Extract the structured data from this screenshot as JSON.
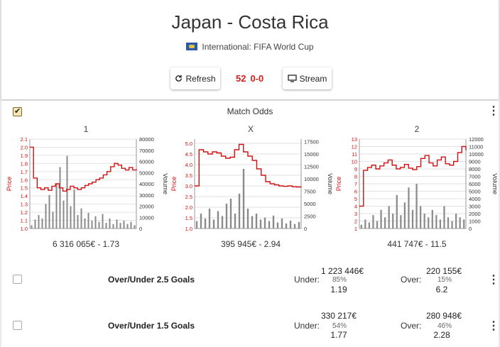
{
  "header": {
    "title": "Japan - Costa Rica",
    "competition": "International: FIFA World Cup",
    "refresh_label": "Refresh",
    "match_minute": "52",
    "match_score": "0-0",
    "stream_label": "Stream"
  },
  "match_odds": {
    "title": "Match Odds",
    "checked": true,
    "y_left_label": "Price",
    "y_right_label": "Volume",
    "colors": {
      "price": "#d01010",
      "volume": "#8a8a8a"
    },
    "charts": [
      {
        "label": "1",
        "footer": "6 316 065€ - 1.73"
      },
      {
        "label": "X",
        "footer": "395 945€ - 2.94"
      },
      {
        "label": "2",
        "footer": "441 747€ - 11.5"
      }
    ]
  },
  "chart_data": [
    {
      "type": "line",
      "title": "1",
      "xlabel": "",
      "ylabel": "Price",
      "y2label": "Volume",
      "ylim": [
        1.0,
        2.1
      ],
      "y2lim": [
        0,
        80000
      ],
      "price_ticks": [
        "1.0",
        "1.1",
        "1.2",
        "1.3",
        "1.4",
        "1.5",
        "1.6",
        "1.7",
        "1.8",
        "1.9",
        "2.0",
        "2.1"
      ],
      "volume_ticks": [
        "0",
        "10000",
        "20000",
        "30000",
        "40000",
        "50000",
        "60000",
        "70000",
        "80000"
      ],
      "series": [
        {
          "name": "Price",
          "values": [
            2.0,
            1.62,
            1.5,
            1.48,
            1.5,
            1.47,
            1.52,
            1.55,
            1.5,
            1.46,
            1.48,
            1.52,
            1.5,
            1.48,
            1.5,
            1.53,
            1.55,
            1.57,
            1.6,
            1.62,
            1.66,
            1.7,
            1.76,
            1.8,
            1.78,
            1.74,
            1.72,
            1.75,
            1.72,
            1.73
          ]
        },
        {
          "name": "Volume",
          "values": [
            3000,
            8000,
            12000,
            9000,
            22000,
            30000,
            15000,
            40000,
            55000,
            25000,
            65000,
            20000,
            35000,
            12000,
            18000,
            9000,
            14000,
            7000,
            11000,
            6000,
            13000,
            5000,
            9000,
            4000,
            8000,
            5000,
            7000,
            4000,
            6000,
            3000
          ]
        }
      ]
    },
    {
      "type": "line",
      "title": "X",
      "xlabel": "",
      "ylabel": "Price",
      "y2label": "Volume",
      "ylim": [
        1.0,
        5.2
      ],
      "y2lim": [
        0,
        18000
      ],
      "price_ticks": [
        "1.0",
        "1.5",
        "2.0",
        "2.5",
        "3.0",
        "3.5",
        "4.0",
        "4.5",
        "5.0"
      ],
      "volume_ticks": [
        "0",
        "2500",
        "5000",
        "7500",
        "10000",
        "12500",
        "15000",
        "17500"
      ],
      "series": [
        {
          "name": "Price",
          "values": [
            3.0,
            4.7,
            4.6,
            4.5,
            4.6,
            4.55,
            4.4,
            4.3,
            4.35,
            4.7,
            4.95,
            4.6,
            4.4,
            4.2,
            3.8,
            3.5,
            3.2,
            3.1,
            3.05,
            3.0,
            2.98,
            3.0,
            2.96,
            2.95,
            2.94
          ]
        },
        {
          "name": "Volume",
          "values": [
            1500,
            3000,
            2000,
            4000,
            1800,
            3500,
            2500,
            5000,
            6000,
            3000,
            7000,
            12000,
            4000,
            2500,
            3000,
            1800,
            2200,
            1500,
            2600,
            1200,
            2000,
            1000,
            1600,
            900,
            1300
          ]
        }
      ]
    },
    {
      "type": "line",
      "title": "2",
      "xlabel": "",
      "ylabel": "Price",
      "y2label": "Volume",
      "ylim": [
        1,
        13
      ],
      "y2lim": [
        0,
        12000
      ],
      "price_ticks": [
        "1",
        "2",
        "3",
        "4",
        "5",
        "6",
        "7",
        "8",
        "9",
        "10",
        "11",
        "12",
        "13"
      ],
      "volume_ticks": [
        "0",
        "1000",
        "2000",
        "3000",
        "4000",
        "5000",
        "6000",
        "7000",
        "8000",
        "9000",
        "10000",
        "11000",
        "12000"
      ],
      "series": [
        {
          "name": "Price",
          "values": [
            4.0,
            8.8,
            9.2,
            9.5,
            9.0,
            9.4,
            9.8,
            10.2,
            9.5,
            9.0,
            9.2,
            9.6,
            9.1,
            8.9,
            9.3,
            10.4,
            10.8,
            9.8,
            9.4,
            10.2,
            10.6,
            9.7,
            9.5,
            10.0,
            11.2,
            12.0,
            11.5
          ]
        },
        {
          "name": "Volume",
          "values": [
            500,
            1200,
            800,
            1800,
            1000,
            2500,
            1500,
            3000,
            2000,
            4500,
            1800,
            3500,
            5500,
            2500,
            6000,
            3000,
            2000,
            1500,
            2500,
            1800,
            1200,
            3000,
            1500,
            1000,
            2000,
            1500,
            1200
          ]
        }
      ]
    }
  ],
  "markets": [
    {
      "name": "Over/Under 2.5 Goals",
      "checked": false,
      "under": {
        "label": "Under:",
        "volume": "1 223 446€",
        "pct": "85%",
        "price": "1.19"
      },
      "over": {
        "label": "Over:",
        "volume": "220 155€",
        "pct": "15%",
        "price": "6.2"
      }
    },
    {
      "name": "Over/Under 1.5 Goals",
      "checked": false,
      "under": {
        "label": "Under:",
        "volume": "330 217€",
        "pct": "54%",
        "price": "1.77"
      },
      "over": {
        "label": "Over:",
        "volume": "280 948€",
        "pct": "46%",
        "price": "2.28"
      }
    }
  ]
}
